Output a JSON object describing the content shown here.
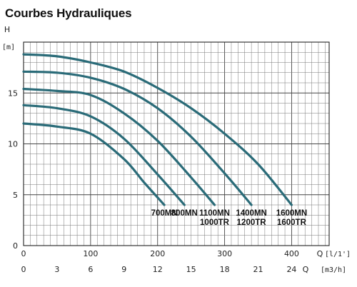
{
  "chart_data": {
    "type": "line",
    "title": "Courbes Hydrauliques",
    "ylabel": "H",
    "yunit": "[m]",
    "xlabel": "Q",
    "xunit": "[l/1']",
    "xlabel2": "Q",
    "xunit2": "[m3/h]",
    "xlim": [
      0,
      456
    ],
    "ylim": [
      0,
      20
    ],
    "grid": true,
    "x_ticks": [
      "0",
      "100",
      "200",
      "300",
      "400"
    ],
    "x_tick_values": [
      0,
      100,
      200,
      300,
      400
    ],
    "x2_ticks": [
      "0",
      "3",
      "6",
      "9",
      "12",
      "15",
      "18",
      "21",
      "24"
    ],
    "x2_tick_values": [
      0,
      3,
      6,
      9,
      12,
      15,
      18,
      21,
      24
    ],
    "y_ticks": [
      "0",
      "5",
      "10",
      "15"
    ],
    "y_tick_values": [
      0,
      5,
      10,
      15
    ],
    "curve_color": "#2a6b78",
    "series": [
      {
        "label_lines": [
          "700MN"
        ],
        "points": [
          [
            0,
            12.0
          ],
          [
            50,
            11.7
          ],
          [
            100,
            11.0
          ],
          [
            150,
            8.5
          ],
          [
            180,
            6.2
          ],
          [
            210,
            4.0
          ]
        ]
      },
      {
        "label_lines": [
          "800MN"
        ],
        "points": [
          [
            0,
            13.8
          ],
          [
            50,
            13.5
          ],
          [
            100,
            12.7
          ],
          [
            150,
            10.5
          ],
          [
            200,
            7.0
          ],
          [
            240,
            4.0
          ]
        ]
      },
      {
        "label_lines": [
          "1100MN",
          "1000TR"
        ],
        "points": [
          [
            0,
            15.4
          ],
          [
            50,
            15.2
          ],
          [
            100,
            14.8
          ],
          [
            150,
            13.0
          ],
          [
            200,
            10.3
          ],
          [
            250,
            6.7
          ],
          [
            285,
            4.0
          ]
        ]
      },
      {
        "label_lines": [
          "1400MN",
          "1200TR"
        ],
        "points": [
          [
            0,
            17.1
          ],
          [
            50,
            17.0
          ],
          [
            100,
            16.5
          ],
          [
            150,
            15.4
          ],
          [
            200,
            13.5
          ],
          [
            250,
            10.7
          ],
          [
            300,
            7.1
          ],
          [
            340,
            4.0
          ]
        ]
      },
      {
        "label_lines": [
          "1600MN",
          "1600TR"
        ],
        "points": [
          [
            0,
            18.8
          ],
          [
            50,
            18.6
          ],
          [
            100,
            18.0
          ],
          [
            150,
            17.1
          ],
          [
            200,
            15.5
          ],
          [
            250,
            13.5
          ],
          [
            300,
            11.0
          ],
          [
            350,
            8.0
          ],
          [
            400,
            4.0
          ]
        ]
      }
    ]
  }
}
